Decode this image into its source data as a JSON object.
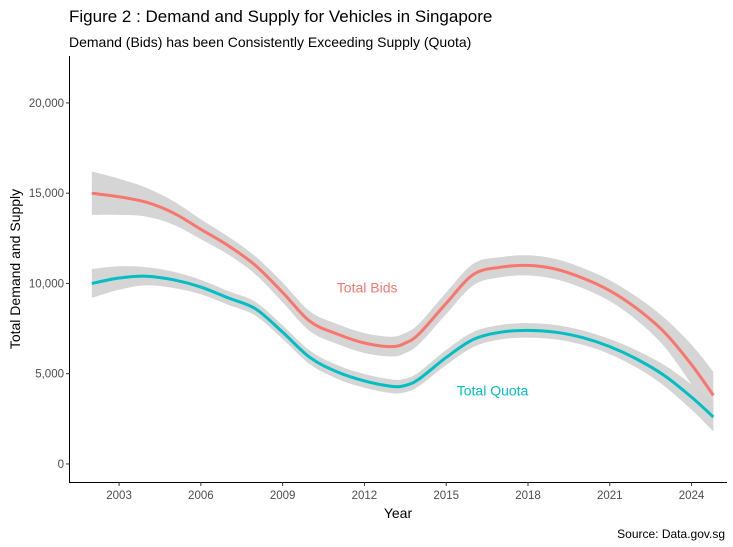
{
  "chart_data": {
    "type": "line",
    "title": "Figure 2 : Demand and Supply for Vehicles in Singapore",
    "subtitle": "Demand (Bids) has been Consistently Exceeding Supply (Quota)",
    "xlabel": "Year",
    "ylabel": "Total Demand and Supply",
    "caption": "Source: Data.gov.sg",
    "xlim": [
      2001.2,
      2025.3
    ],
    "ylim": [
      -1000,
      22600
    ],
    "x_ticks": [
      2003,
      2006,
      2009,
      2012,
      2015,
      2018,
      2021,
      2024
    ],
    "y_ticks": [
      0,
      5000,
      10000,
      15000,
      20000
    ],
    "y_tick_labels": [
      "0",
      "5,000",
      "10,000",
      "15,000",
      "20,000"
    ],
    "grid": false,
    "legend": "none (direct labels)",
    "series": [
      {
        "name": "Total Bids",
        "label_pos": [
          2012.1,
          9500
        ],
        "color": "#f8766d",
        "band_color": "#d3d3d3",
        "x": [
          2002,
          2003,
          2004,
          2005,
          2006,
          2007,
          2008,
          2009,
          2010,
          2011,
          2012,
          2013,
          2013.5,
          2014,
          2015,
          2016,
          2017,
          2018,
          2019,
          2020,
          2021,
          2022,
          2023,
          2024,
          2024.8
        ],
        "y": [
          15000,
          14800,
          14500,
          13900,
          13000,
          12100,
          11000,
          9500,
          7900,
          7200,
          6700,
          6500,
          6700,
          7200,
          8900,
          10500,
          10900,
          11000,
          10800,
          10300,
          9600,
          8600,
          7300,
          5500,
          3800
        ],
        "band": [
          1200,
          1000,
          800,
          650,
          550,
          500,
          500,
          550,
          550,
          550,
          550,
          550,
          560,
          570,
          600,
          600,
          560,
          560,
          560,
          560,
          580,
          650,
          800,
          1100,
          1300
        ]
      },
      {
        "name": "Total Quota",
        "label_pos": [
          2016.7,
          3800
        ],
        "color": "#00bfc4",
        "band_color": "#d3d3d3",
        "x": [
          2002,
          2003,
          2004,
          2005,
          2006,
          2007,
          2008,
          2009,
          2010,
          2011,
          2012,
          2013,
          2013.5,
          2014,
          2015,
          2016,
          2017,
          2018,
          2019,
          2020,
          2021,
          2022,
          2023,
          2024,
          2024.8
        ],
        "y": [
          10000,
          10300,
          10400,
          10200,
          9800,
          9200,
          8600,
          7300,
          5900,
          5100,
          4600,
          4300,
          4350,
          4700,
          5900,
          6900,
          7300,
          7400,
          7300,
          7000,
          6500,
          5800,
          4900,
          3700,
          2600
        ],
        "band": [
          800,
          650,
          500,
          450,
          400,
          380,
          380,
          380,
          380,
          380,
          380,
          380,
          380,
          390,
          420,
          420,
          400,
          400,
          400,
          400,
          420,
          480,
          580,
          700,
          800
        ]
      }
    ]
  }
}
